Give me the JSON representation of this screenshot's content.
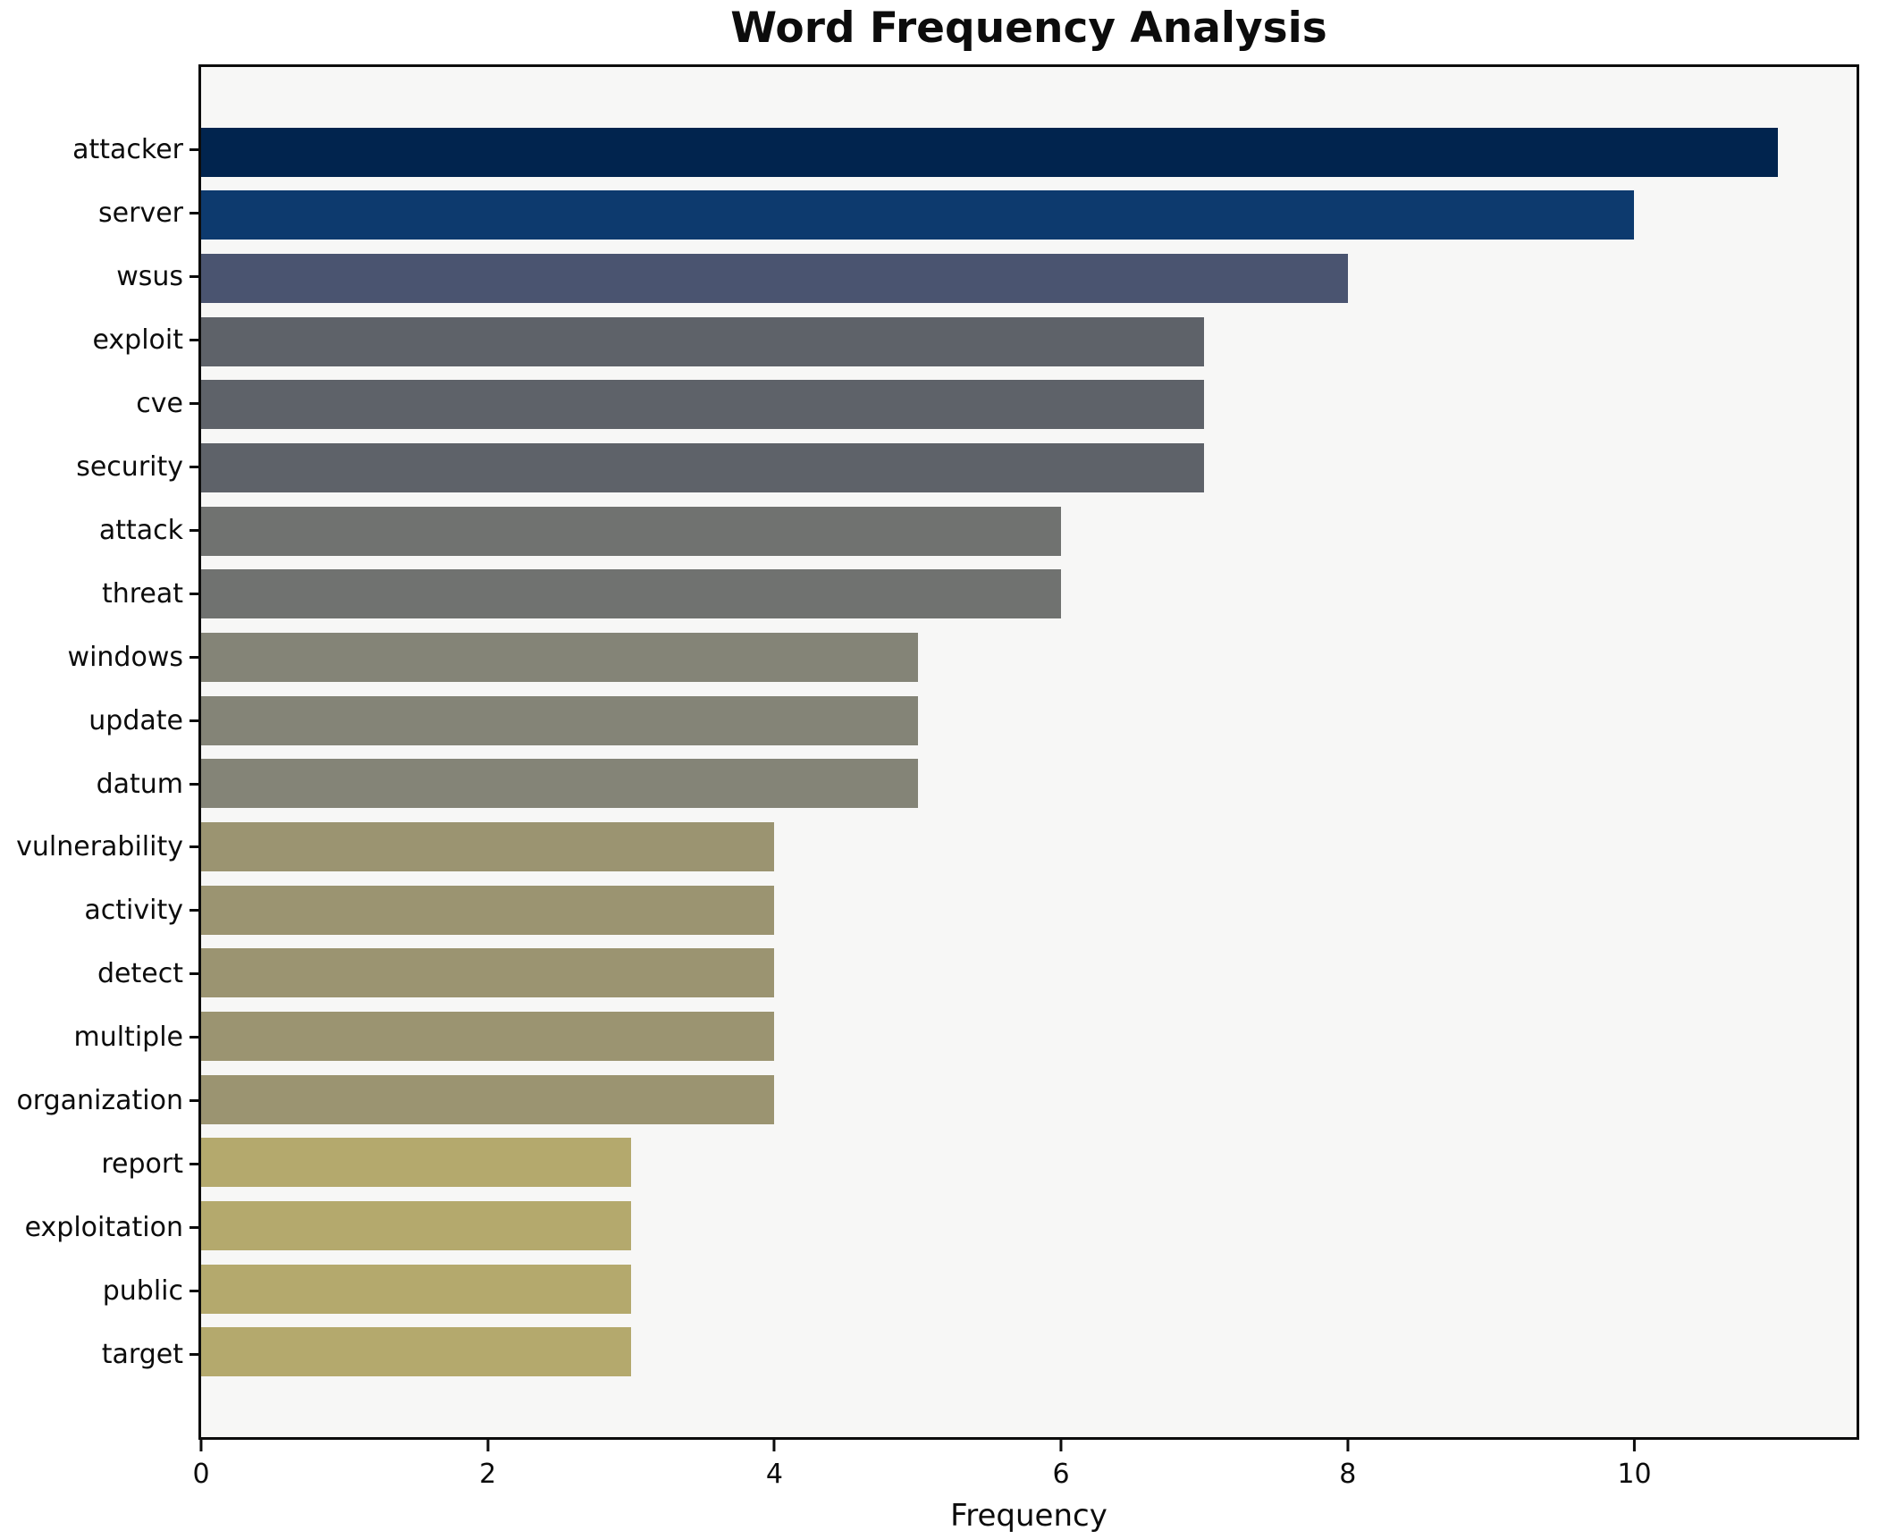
{
  "chart_data": {
    "type": "bar",
    "orientation": "horizontal",
    "title": "Word Frequency Analysis",
    "xlabel": "Frequency",
    "ylabel": "",
    "xlim": [
      0,
      11.55
    ],
    "xticks": [
      0,
      2,
      4,
      6,
      8,
      10
    ],
    "grid": false,
    "legend": false,
    "plot_bg": "#f7f7f6",
    "figure_bg": "#ffffff",
    "spine_color": "#0c0c0c",
    "categories": [
      "attacker",
      "server",
      "wsus",
      "exploit",
      "cve",
      "security",
      "attack",
      "threat",
      "windows",
      "update",
      "datum",
      "vulnerability",
      "activity",
      "detect",
      "multiple",
      "organization",
      "report",
      "exploitation",
      "public",
      "target"
    ],
    "values": [
      11,
      10,
      8,
      7,
      7,
      7,
      6,
      6,
      5,
      5,
      5,
      4,
      4,
      4,
      4,
      4,
      3,
      3,
      3,
      3
    ],
    "bar_colors": [
      "#01244e",
      "#0d3a6e",
      "#4a5470",
      "#5e6269",
      "#5e6269",
      "#5e6269",
      "#707270",
      "#707270",
      "#848477",
      "#848477",
      "#848477",
      "#9b9471",
      "#9b9471",
      "#9b9471",
      "#9b9471",
      "#9b9471",
      "#b4a96d",
      "#b4a96d",
      "#b4a96d",
      "#b4a96d"
    ]
  }
}
